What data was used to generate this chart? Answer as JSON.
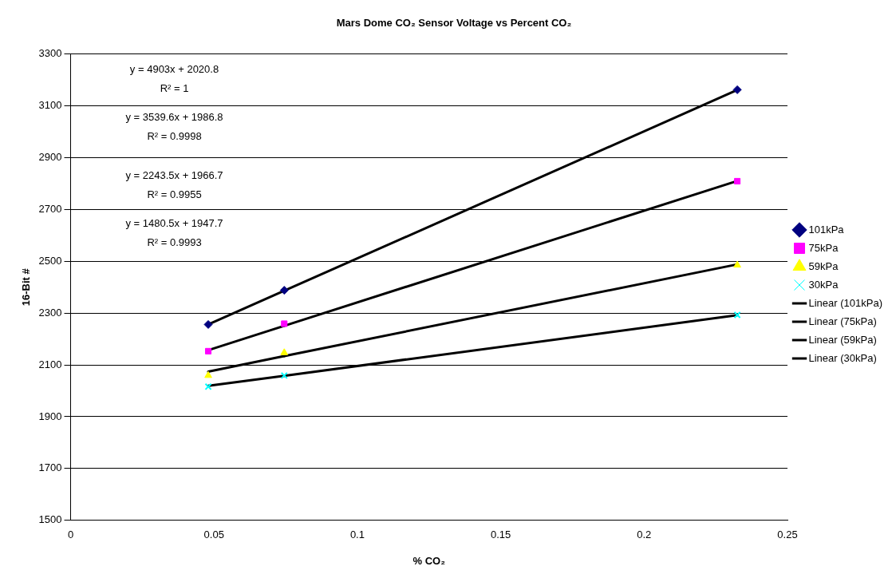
{
  "chart_data": {
    "type": "scatter",
    "title": "Mars Dome CO₂ Sensor Voltage vs Percent CO₂",
    "xlabel": "% CO₂",
    "ylabel": "16-Bit #",
    "x": [
      0.048,
      0.0745,
      0.2325
    ],
    "series": [
      {
        "name": "101kPa",
        "color": "#000080",
        "marker": "diamond",
        "values": [
          2256,
          2388,
          3162
        ]
      },
      {
        "name": "75kPa",
        "color": "#ff00ff",
        "marker": "square",
        "values": [
          2153,
          2259,
          2809
        ]
      },
      {
        "name": "59kPa",
        "color": "#ffff00",
        "marker": "triangle",
        "values": [
          2059,
          2147,
          2485
        ]
      },
      {
        "name": "30kPa",
        "color": "#00ffff",
        "marker": "cross",
        "values": [
          2016,
          2059,
          2293
        ]
      },
      {
        "name": "Linear (101kPa)",
        "type": "line",
        "color": "#000000",
        "marker": "none",
        "values": [
          2256,
          2386,
          3161
        ]
      },
      {
        "name": "Linear (75kPa)",
        "type": "line",
        "color": "#000000",
        "marker": "none",
        "values": [
          2157,
          2251,
          2810
        ]
      },
      {
        "name": "Linear (59kPa)",
        "type": "line",
        "color": "#000000",
        "marker": "none",
        "values": [
          2074,
          2134,
          2488
        ]
      },
      {
        "name": "Linear (30kPa)",
        "type": "line",
        "color": "#000000",
        "marker": "none",
        "values": [
          2019,
          2058,
          2292
        ]
      }
    ],
    "annotations": [
      "y = 4903x + 2020.8",
      "R² = 1",
      "y = 3539.6x + 1986.8",
      "R² = 0.9998",
      "y = 2243.5x + 1966.7",
      "R² = 0.9955",
      "y = 1480.5x + 1947.7",
      "R² = 0.9993"
    ],
    "xlim": [
      0,
      0.25
    ],
    "xticks": [
      0,
      0.05,
      0.1,
      0.15,
      0.2,
      0.25
    ],
    "ylim": [
      1500,
      3300
    ],
    "yticks": [
      1500,
      1700,
      1900,
      2100,
      2300,
      2500,
      2700,
      2900,
      3100,
      3300
    ],
    "grid": "y",
    "legend": "right"
  }
}
